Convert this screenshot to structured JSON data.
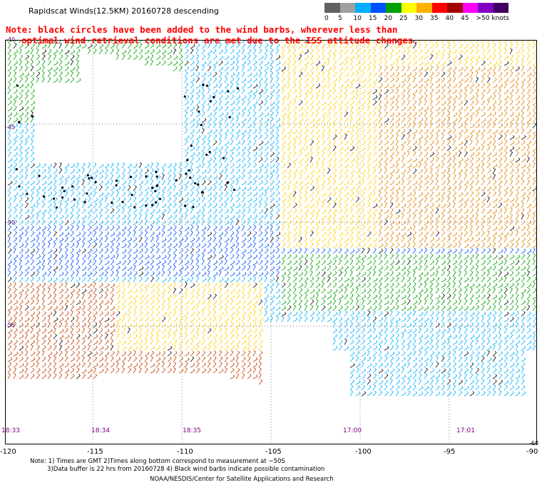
{
  "title": "Rapidscat Winds(12.5KM) 20160728 descending",
  "note": {
    "line1": "Note: black circles have been added to the wind barbs, wherever less than",
    "line2": "optimal wind retrieval conditions are met due to the ISS attitude changes."
  },
  "colorbar": {
    "colors": [
      "#606060",
      "#a0a0a0",
      "#00b0ff",
      "#0050ff",
      "#00a000",
      "#ffff00",
      "#ffb000",
      "#ff0000",
      "#a00000",
      "#ff00ff",
      "#8000c0",
      "#400060"
    ],
    "labels": [
      "0",
      "5",
      "10",
      "15",
      "20",
      "25",
      "30",
      "35",
      "40",
      "45",
      ">50 knots"
    ]
  },
  "axes": {
    "lon_labels": [
      "-120",
      "-115",
      "-110",
      "-105",
      "-100",
      "-95",
      "-90"
    ],
    "lat_labels": [
      "-45",
      "-50",
      "-55",
      "-60"
    ],
    "top_lat_label": "-40"
  },
  "times": [
    "18:33",
    "18:34",
    "18:35",
    "17:00",
    "17:01"
  ],
  "footer": {
    "line1": "Note: 1) Times are GMT 2)Times along bottom correspond to measurement at ~50S",
    "line2": "3)Data buffer is 22 hrs from 20160728 4) Black wind barbs indicate possible contamination",
    "line3": "NOAA/NESDIS/Center for Satellite Applications and Research"
  }
}
